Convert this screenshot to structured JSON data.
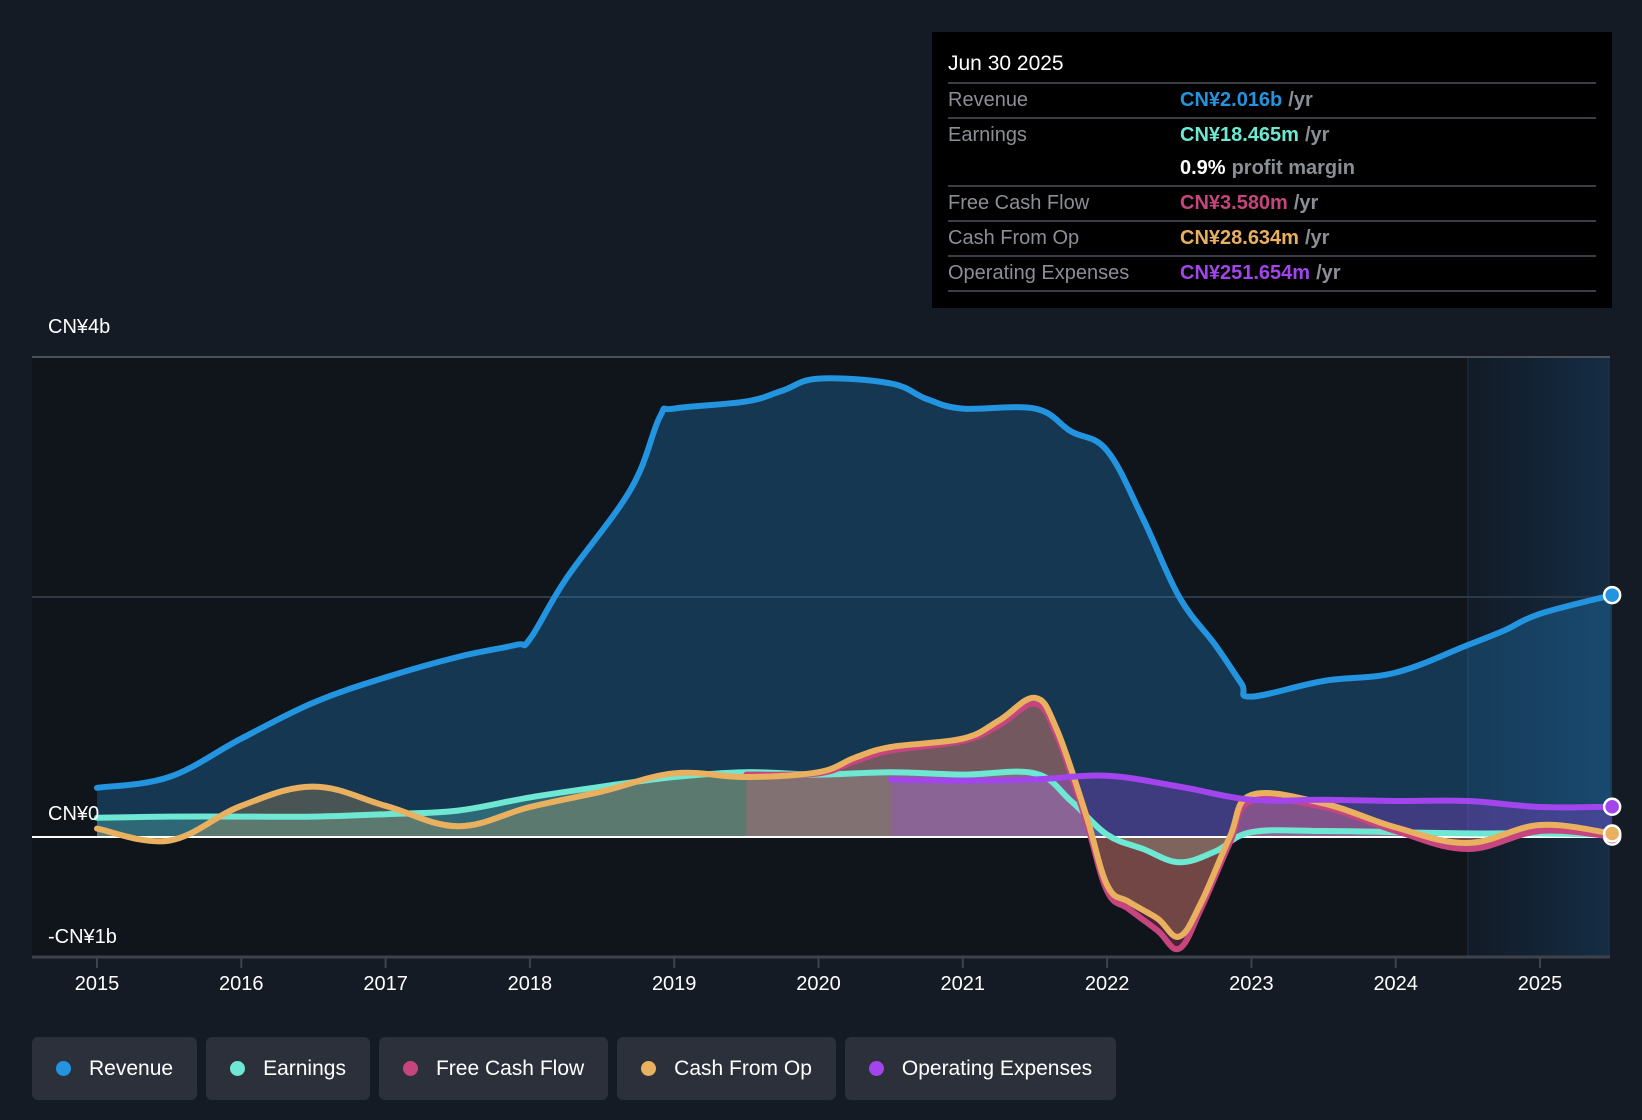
{
  "tooltip": {
    "date": "Jun 30 2025",
    "rows": [
      {
        "label": "Revenue",
        "value": "CN¥2.016b",
        "unit": "/yr",
        "color": "#2394df"
      },
      {
        "label": "Earnings",
        "value": "CN¥18.465m",
        "unit": "/yr",
        "color": "#6ee7d3"
      },
      {
        "label": "",
        "value": "0.9%",
        "unit": "profit margin",
        "color": "#ffffff"
      },
      {
        "label": "Free Cash Flow",
        "value": "CN¥3.580m",
        "unit": "/yr",
        "color": "#c7457f"
      },
      {
        "label": "Cash From Op",
        "value": "CN¥28.634m",
        "unit": "/yr",
        "color": "#e9b060"
      },
      {
        "label": "Operating Expenses",
        "value": "CN¥251.654m",
        "unit": "/yr",
        "color": "#a345ec"
      }
    ]
  },
  "legend": [
    {
      "label": "Revenue",
      "color": "#2394df"
    },
    {
      "label": "Earnings",
      "color": "#6ee7d3"
    },
    {
      "label": "Free Cash Flow",
      "color": "#c7457f"
    },
    {
      "label": "Cash From Op",
      "color": "#e9b060"
    },
    {
      "label": "Operating Expenses",
      "color": "#a345ec"
    }
  ],
  "chart_data": {
    "type": "line",
    "title": "",
    "xlabel": "",
    "ylabel": "",
    "unit": "CN¥ billions",
    "ylim": [
      -1,
      4
    ],
    "xlim": [
      2014.6,
      2025.5
    ],
    "y_ticks": [
      {
        "value": 4,
        "label": "CN¥4b"
      },
      {
        "value": 0,
        "label": "CN¥0"
      },
      {
        "value": -1,
        "label": "-CN¥1b"
      }
    ],
    "gridlines": [
      4,
      2
    ],
    "x_ticks": [
      2015,
      2016,
      2017,
      2018,
      2019,
      2020,
      2021,
      2022,
      2023,
      2024,
      2025
    ],
    "highlight_region_start": 2024.5,
    "legend_position": "bottom",
    "series": [
      {
        "name": "Revenue",
        "color": "#2394df",
        "fill": true,
        "points": [
          [
            2015,
            0.41
          ],
          [
            2015.5,
            0.5
          ],
          [
            2016,
            0.82
          ],
          [
            2016.5,
            1.12
          ],
          [
            2017,
            1.33
          ],
          [
            2017.5,
            1.5
          ],
          [
            2017.9,
            1.6
          ],
          [
            2018,
            1.65
          ],
          [
            2018.25,
            2.15
          ],
          [
            2018.7,
            2.9
          ],
          [
            2018.9,
            3.5
          ],
          [
            2019,
            3.57
          ],
          [
            2019.5,
            3.63
          ],
          [
            2019.75,
            3.72
          ],
          [
            2020,
            3.82
          ],
          [
            2020.5,
            3.78
          ],
          [
            2020.75,
            3.65
          ],
          [
            2021,
            3.57
          ],
          [
            2021.5,
            3.57
          ],
          [
            2021.75,
            3.38
          ],
          [
            2022,
            3.22
          ],
          [
            2022.25,
            2.65
          ],
          [
            2022.5,
            2.0
          ],
          [
            2022.75,
            1.6
          ],
          [
            2022.93,
            1.28
          ],
          [
            2023,
            1.17
          ],
          [
            2023.5,
            1.3
          ],
          [
            2024,
            1.37
          ],
          [
            2024.5,
            1.6
          ],
          [
            2024.75,
            1.72
          ],
          [
            2025,
            1.86
          ],
          [
            2025.5,
            2.016
          ]
        ]
      },
      {
        "name": "Earnings",
        "color": "#6ee7d3",
        "fill": true,
        "points": [
          [
            2015,
            0.16
          ],
          [
            2015.5,
            0.17
          ],
          [
            2016,
            0.17
          ],
          [
            2016.5,
            0.17
          ],
          [
            2017,
            0.19
          ],
          [
            2017.5,
            0.22
          ],
          [
            2018,
            0.33
          ],
          [
            2018.5,
            0.42
          ],
          [
            2019,
            0.5
          ],
          [
            2019.5,
            0.54
          ],
          [
            2020,
            0.52
          ],
          [
            2020.5,
            0.54
          ],
          [
            2021,
            0.52
          ],
          [
            2021.5,
            0.53
          ],
          [
            2021.75,
            0.3
          ],
          [
            2022,
            0.02
          ],
          [
            2022.25,
            -0.1
          ],
          [
            2022.5,
            -0.21
          ],
          [
            2022.75,
            -0.12
          ],
          [
            2023,
            0.04
          ],
          [
            2023.5,
            0.05
          ],
          [
            2024,
            0.04
          ],
          [
            2024.5,
            0.03
          ],
          [
            2025,
            0.03
          ],
          [
            2025.5,
            0.018
          ]
        ]
      },
      {
        "name": "Free Cash Flow",
        "color": "#c7457f",
        "fill": true,
        "points": [
          [
            2019.5,
            0.52
          ],
          [
            2020,
            0.53
          ],
          [
            2020.25,
            0.63
          ],
          [
            2020.5,
            0.72
          ],
          [
            2021,
            0.8
          ],
          [
            2021.25,
            0.93
          ],
          [
            2021.5,
            1.11
          ],
          [
            2021.65,
            0.85
          ],
          [
            2021.85,
            0.15
          ],
          [
            2022,
            -0.45
          ],
          [
            2022.15,
            -0.6
          ],
          [
            2022.35,
            -0.78
          ],
          [
            2022.5,
            -0.93
          ],
          [
            2022.65,
            -0.6
          ],
          [
            2022.85,
            -0.05
          ],
          [
            2023,
            0.3
          ],
          [
            2023.5,
            0.25
          ],
          [
            2024,
            0.05
          ],
          [
            2024.5,
            -0.1
          ],
          [
            2025,
            0.05
          ],
          [
            2025.5,
            0.0036
          ]
        ]
      },
      {
        "name": "Cash From Op",
        "color": "#e9b060",
        "fill": true,
        "points": [
          [
            2015,
            0.07
          ],
          [
            2015.5,
            -0.03
          ],
          [
            2016,
            0.26
          ],
          [
            2016.5,
            0.42
          ],
          [
            2017,
            0.26
          ],
          [
            2017.5,
            0.09
          ],
          [
            2018,
            0.25
          ],
          [
            2018.5,
            0.38
          ],
          [
            2019,
            0.53
          ],
          [
            2019.5,
            0.5
          ],
          [
            2020,
            0.54
          ],
          [
            2020.25,
            0.66
          ],
          [
            2020.5,
            0.75
          ],
          [
            2021,
            0.82
          ],
          [
            2021.25,
            0.97
          ],
          [
            2021.5,
            1.16
          ],
          [
            2021.65,
            0.9
          ],
          [
            2021.85,
            0.2
          ],
          [
            2022,
            -0.4
          ],
          [
            2022.15,
            -0.54
          ],
          [
            2022.35,
            -0.68
          ],
          [
            2022.5,
            -0.83
          ],
          [
            2022.65,
            -0.55
          ],
          [
            2022.85,
            0.0
          ],
          [
            2023,
            0.35
          ],
          [
            2023.5,
            0.28
          ],
          [
            2024,
            0.08
          ],
          [
            2024.5,
            -0.05
          ],
          [
            2025,
            0.1
          ],
          [
            2025.5,
            0.029
          ]
        ]
      },
      {
        "name": "Operating Expenses",
        "color": "#a345ec",
        "fill": true,
        "points": [
          [
            2020.5,
            0.48
          ],
          [
            2021,
            0.47
          ],
          [
            2021.5,
            0.48
          ],
          [
            2022,
            0.51
          ],
          [
            2022.5,
            0.42
          ],
          [
            2023,
            0.31
          ],
          [
            2023.5,
            0.31
          ],
          [
            2024,
            0.3
          ],
          [
            2024.5,
            0.3
          ],
          [
            2025,
            0.25
          ],
          [
            2025.5,
            0.252
          ]
        ]
      }
    ]
  }
}
